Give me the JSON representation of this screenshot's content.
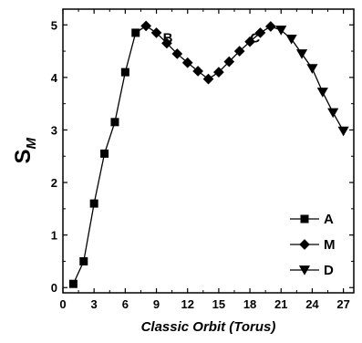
{
  "chart_data": {
    "type": "line",
    "xlabel": "Classic Orbit (Torus)",
    "ylabel": {
      "main": "S",
      "subscript": "M"
    },
    "xlim": [
      0,
      28
    ],
    "ylim": [
      -0.1,
      5.3
    ],
    "xticks": [
      0,
      3,
      6,
      9,
      12,
      15,
      18,
      21,
      24,
      27
    ],
    "yticks": [
      0,
      1,
      2,
      3,
      4,
      5
    ],
    "grid": false,
    "legend_position": "bottom-right",
    "annotations": [
      {
        "text": "B",
        "x": 10.1,
        "y": 4.75
      },
      {
        "text": "C",
        "x": 18.5,
        "y": 4.75
      }
    ],
    "series": [
      {
        "name": "A",
        "marker": "square",
        "x": [
          1,
          2,
          3,
          4,
          5,
          6,
          7
        ],
        "y": [
          0.07,
          0.5,
          1.6,
          2.55,
          3.15,
          4.1,
          4.85
        ]
      },
      {
        "name": "M",
        "marker": "diamond",
        "x": [
          8,
          9,
          10,
          11,
          12,
          13,
          14,
          15,
          16,
          17,
          18,
          19,
          20
        ],
        "y": [
          4.98,
          4.85,
          4.65,
          4.45,
          4.28,
          4.12,
          3.97,
          4.1,
          4.3,
          4.5,
          4.68,
          4.85,
          4.97
        ]
      },
      {
        "name": "D",
        "marker": "triangle-down",
        "x": [
          21,
          22,
          23,
          24,
          25,
          26,
          27
        ],
        "y": [
          4.9,
          4.73,
          4.45,
          4.17,
          3.72,
          3.33,
          2.98
        ]
      }
    ]
  }
}
